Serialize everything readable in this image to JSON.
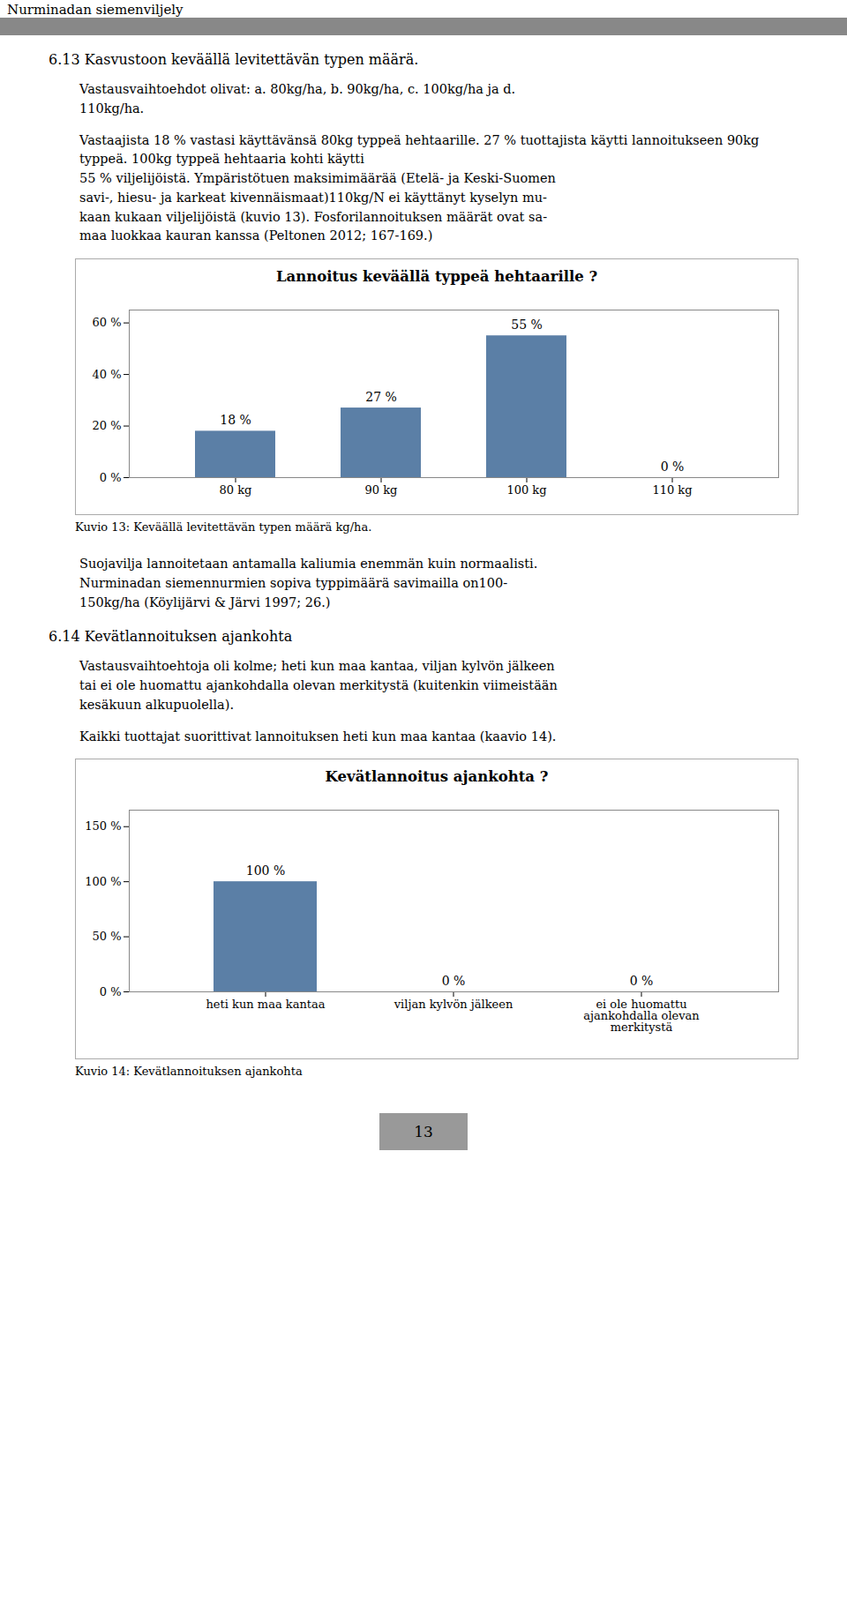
{
  "page_title": "Nurminadan siemenviljely",
  "sections": [
    {
      "heading": "6.13 Kasvustoon keväällä levitettävän typen määrä.",
      "paragraphs": [
        "Vastausvaihtoehdot olivat: a. 80kg/ha, b. 90kg/ha, c. 100kg/ha ja d.\n110kg/ha.",
        "Vastaajista 18 % vastasi käyttävänsä 80kg typpeä hehtaarille. 27 % tuottajista käytti lannoitukseen 90kg typpeä. 100kg typpeä hehtaaria kohti käytti\n55 % viljelijöistä. Ympäristötuen maksimimäärää (Etelä- ja Keski-Suomen\nsavi-, hiesu- ja karkeat kivennäismaat)110kg/N ei käyttänyt kyselyn mu-\nkaan kukaan viljelijöistä (kuvio 13). Fosforilannoituksen määrät ovat sa-\nmaa luokkaa kauran kanssa (Peltonen 2012; 167-169.)"
      ]
    },
    {
      "paragraphs": [
        "Suojavilja lannoitetaan antamalla kaliumia enemmän kuin normaalisti.\nNurminadan siemennurmien sopiva typpimäärä savimailla on100-\n150kg/ha (Köylijärvi & Järvi 1997; 26.)"
      ]
    },
    {
      "heading": "6.14 Kevätlannoituksen ajankohta",
      "paragraphs": [
        "Vastausvaihtoehtoja oli kolme; heti kun maa kantaa, viljan kylvön jälkeen\ntai ei ole huomattu ajankohdalla olevan merkitystä (kuitenkin viimeistään\nkesäkuun alkupuolella).",
        "Kaikki tuottajat suorittivat lannoituksen heti kun maa kantaa (kaavio 14)."
      ]
    }
  ],
  "chart_data": [
    {
      "type": "bar",
      "title": "Lannoitus keväällä typpeä hehtaarille ?",
      "categories": [
        "80 kg",
        "90 kg",
        "100 kg",
        "110 kg"
      ],
      "values": [
        18,
        27,
        55,
        0
      ],
      "value_labels": [
        "18 %",
        "27 %",
        "55 %",
        "0 %"
      ],
      "data_labels": true,
      "color": "#5b7fa6",
      "ylim": [
        0,
        65
      ],
      "yticks": [
        {
          "value": 0,
          "label": "0 %"
        },
        {
          "value": 20,
          "label": "20 %"
        },
        {
          "value": 40,
          "label": "40 %"
        },
        {
          "value": 60,
          "label": "60 %"
        }
      ],
      "grid": false,
      "caption": "Kuvio 13: Keväällä levitettävän typen määrä kg/ha."
    },
    {
      "type": "bar",
      "title": "Kevätlannoitus ajankohta ?",
      "categories": [
        "heti kun maa kantaa",
        "viljan kylvön jälkeen",
        "ei ole huomattu\najankohdalla olevan\nmerkitystä"
      ],
      "values": [
        100,
        0,
        0
      ],
      "value_labels": [
        "100 %",
        "0 %",
        "0 %"
      ],
      "data_labels": true,
      "color": "#5b7fa6",
      "ylim": [
        0,
        165
      ],
      "yticks": [
        {
          "value": 0,
          "label": "0 %"
        },
        {
          "value": 50,
          "label": "50 %"
        },
        {
          "value": 100,
          "label": "100 %"
        },
        {
          "value": 150,
          "label": "150 %"
        }
      ],
      "grid": false,
      "caption": "Kuvio 14:  Kevätlannoituksen ajankohta"
    }
  ],
  "page_number": "13"
}
